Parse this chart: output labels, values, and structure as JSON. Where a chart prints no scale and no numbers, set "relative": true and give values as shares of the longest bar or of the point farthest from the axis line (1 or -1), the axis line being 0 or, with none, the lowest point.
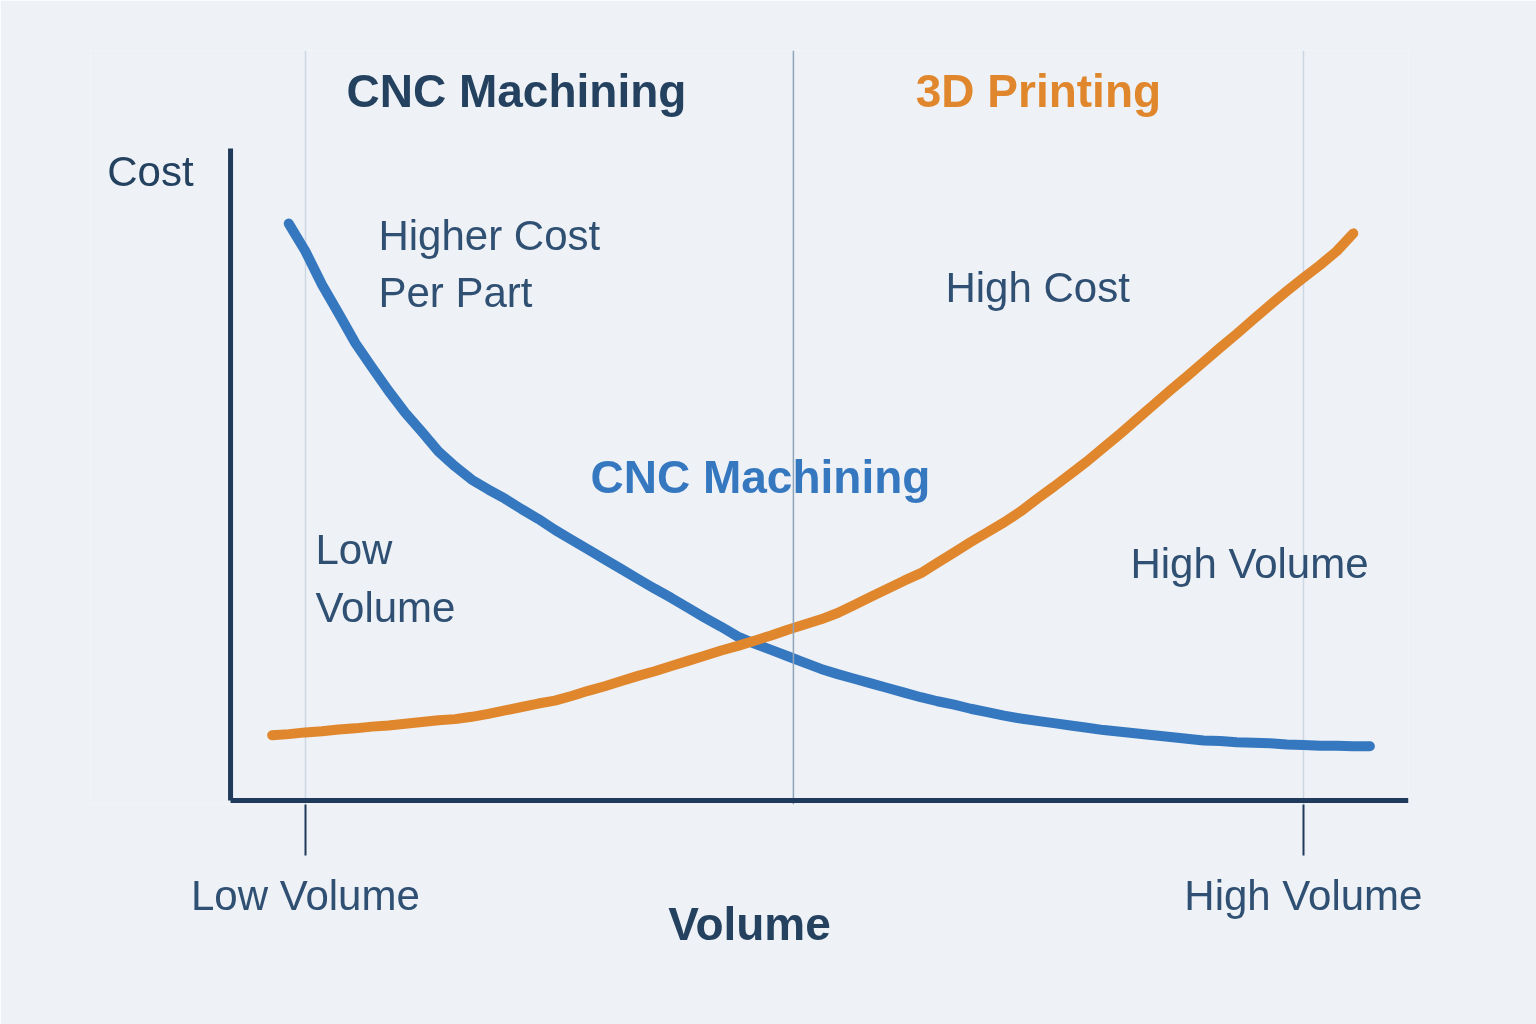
{
  "chart_data": {
    "type": "line",
    "title": "CNC Machining",
    "xlabel": "Volume",
    "ylabel": "Cost",
    "relative": true,
    "grid": "x",
    "categories": [
      null,
      null,
      "Low Volume",
      null,
      null,
      null,
      null,
      null,
      null,
      null,
      null,
      null,
      null,
      null,
      null,
      null,
      null,
      null,
      null,
      null,
      null,
      null,
      null,
      null,
      null,
      null,
      null,
      null,
      null,
      null,
      null,
      null,
      null,
      null,
      null,
      null,
      null,
      null,
      null,
      null,
      null,
      null,
      null,
      null,
      null,
      null,
      null,
      null,
      null,
      null,
      null,
      null,
      null,
      null,
      null,
      null,
      null,
      null,
      null,
      null,
      null,
      null,
      "High Volume",
      null,
      null,
      null,
      null
    ],
    "series": [
      {
        "name": "CNC Machining",
        "color": "#3578c0",
        "values": [
          null,
          1.0,
          0.952,
          0.894,
          0.844,
          0.793,
          0.751,
          0.71,
          0.672,
          0.639,
          0.605,
          0.579,
          0.556,
          0.539,
          0.523,
          0.505,
          0.488,
          0.469,
          0.452,
          0.435,
          0.418,
          0.401,
          0.384,
          0.367,
          0.351,
          0.334,
          0.317,
          0.301,
          0.284,
          0.272,
          0.261,
          0.25,
          0.239,
          0.228,
          0.219,
          0.211,
          0.203,
          0.195,
          0.187,
          0.179,
          0.172,
          0.166,
          0.159,
          0.153,
          0.147,
          0.142,
          0.138,
          0.134,
          0.13,
          0.126,
          0.122,
          0.119,
          0.116,
          0.113,
          0.11,
          0.107,
          0.104,
          0.103,
          0.101,
          0.1,
          0.099,
          0.097,
          0.096,
          0.095,
          0.095,
          0.094,
          0.094
        ]
      },
      {
        "name": "3D Printing",
        "color": "#e0862c",
        "values": [
          0.113,
          0.115,
          0.118,
          0.12,
          0.123,
          0.125,
          0.128,
          0.13,
          0.133,
          0.136,
          0.139,
          0.141,
          0.145,
          0.15,
          0.156,
          0.162,
          0.168,
          0.173,
          0.181,
          0.19,
          0.198,
          0.207,
          0.216,
          0.224,
          0.233,
          0.242,
          0.251,
          0.26,
          0.268,
          0.277,
          0.286,
          0.296,
          0.305,
          0.314,
          0.325,
          0.339,
          0.353,
          0.367,
          0.381,
          0.394,
          0.412,
          0.43,
          0.448,
          0.465,
          0.482,
          0.501,
          0.523,
          0.544,
          0.566,
          0.588,
          0.612,
          0.636,
          0.661,
          0.686,
          0.711,
          0.735,
          0.76,
          0.785,
          0.809,
          0.834,
          0.859,
          0.883,
          0.906,
          0.928,
          0.952,
          0.983,
          null
        ]
      }
    ],
    "annotations": [
      "Higher Cost\nPer Part",
      "High Cost",
      "Low\nVolume",
      "High Volume"
    ]
  }
}
